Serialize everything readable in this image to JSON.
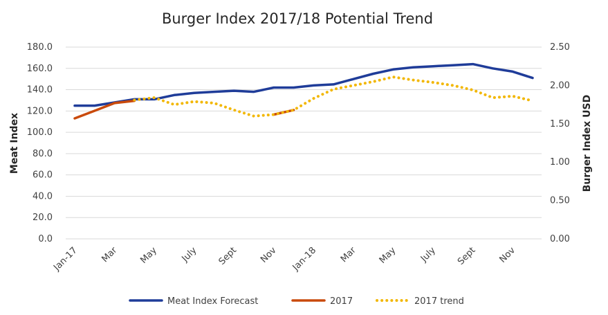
{
  "chart_data": {
    "type": "line",
    "title": "Burger Index 2017/18 Potential Trend",
    "xlabel": "",
    "ylabel": "Meat Index",
    "y2label": "Burger Index USD",
    "ylim": [
      0,
      180
    ],
    "y2lim": [
      0,
      2.5
    ],
    "yticks": [
      "0.0",
      "20.0",
      "40.0",
      "60.0",
      "80.0",
      "100.0",
      "120.0",
      "140.0",
      "160.0",
      "180.0"
    ],
    "y2ticks": [
      "0.00",
      "0.50",
      "1.00",
      "1.50",
      "2.00",
      "2.50"
    ],
    "xticks": [
      "Jan-17",
      "Mar",
      "May",
      "July",
      "Sept",
      "Nov",
      "Jan-18",
      "Mar",
      "May",
      "July",
      "Sept",
      "Nov"
    ],
    "categories": [
      "Jan-17",
      "Feb-17",
      "Mar-17",
      "Apr-17",
      "May-17",
      "Jun-17",
      "Jul-17",
      "Aug-17",
      "Sep-17",
      "Oct-17",
      "Nov-17",
      "Dec-17",
      "Jan-18",
      "Feb-18",
      "Mar-18",
      "Apr-18",
      "May-18",
      "Jun-18",
      "Jul-18",
      "Aug-18",
      "Sep-18",
      "Oct-18",
      "Nov-18",
      "Dec-18"
    ],
    "grid": true,
    "legend_position": "bottom",
    "series": [
      {
        "name": "Meat Index Forecast",
        "axis": "left",
        "color": "#1f3c99",
        "style": "solid",
        "values": [
          125,
          125,
          128,
          131,
          131,
          135,
          137,
          138,
          139,
          138,
          142,
          142,
          144,
          145,
          150,
          155,
          159,
          161,
          162,
          163,
          164,
          160,
          157,
          151
        ]
      },
      {
        "name": "2017",
        "axis": "right",
        "color": "#c94a0c",
        "style": "solid",
        "values": [
          1.57,
          1.67,
          1.77,
          1.8,
          null,
          null,
          null,
          null,
          null,
          null,
          1.62,
          1.68,
          null,
          null,
          null,
          null,
          null,
          null,
          null,
          null,
          null,
          null,
          null,
          null
        ]
      },
      {
        "name": "2017 trend",
        "axis": "right",
        "color": "#f2b705",
        "style": "dotted",
        "values": [
          null,
          null,
          null,
          1.81,
          1.84,
          1.75,
          1.79,
          1.77,
          1.68,
          1.6,
          1.62,
          1.68,
          1.83,
          1.95,
          2.0,
          2.05,
          2.11,
          2.07,
          2.04,
          2.0,
          1.94,
          1.84,
          1.86,
          1.8
        ]
      }
    ]
  }
}
